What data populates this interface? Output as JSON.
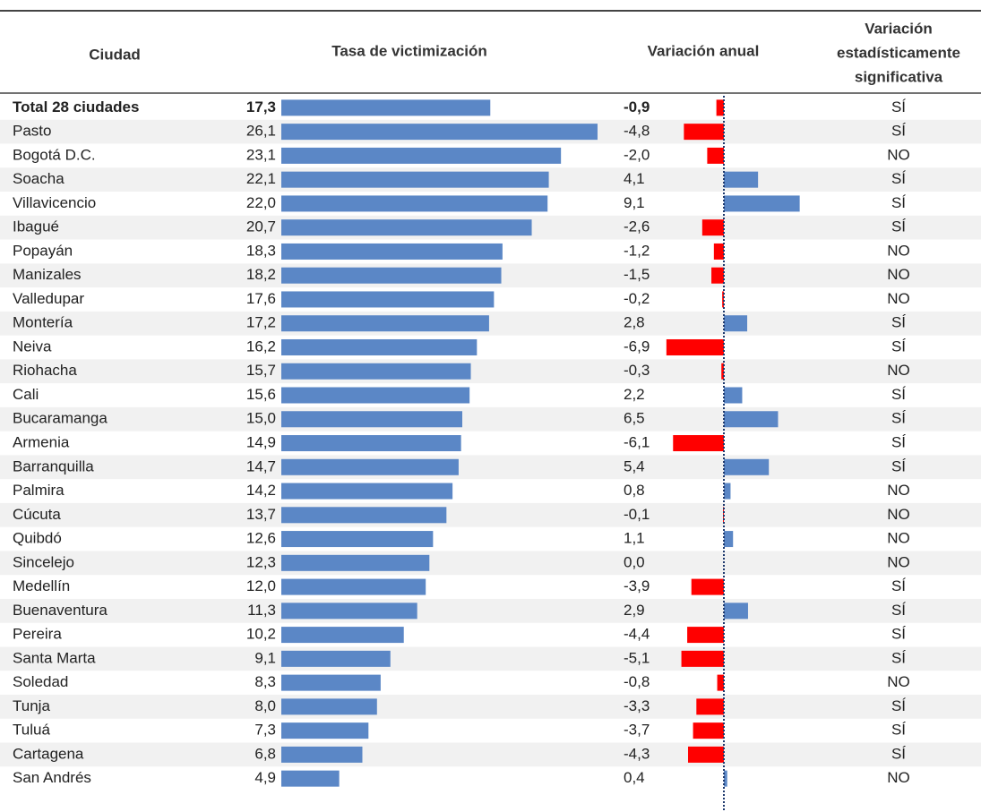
{
  "table": {
    "headers": {
      "city": "Ciudad",
      "rate": "Tasa de victimización",
      "change": "Variación anual",
      "significant": [
        "Variación",
        "estadísticamente",
        "significativa"
      ]
    },
    "bar_color": "#5b87c6",
    "negative_color": "#ff0000",
    "zero_line_color": "#1f3a6e",
    "rows": [
      {
        "city": "Total 28 ciudades",
        "rate": 17.3,
        "rate_label": "17,3",
        "change": -0.9,
        "change_label": "-0,9",
        "significant": "SÍ"
      },
      {
        "city": "Pasto",
        "rate": 26.1,
        "rate_label": "26,1",
        "change": -4.8,
        "change_label": "-4,8",
        "significant": "SÍ"
      },
      {
        "city": "Bogotá D.C.",
        "rate": 23.1,
        "rate_label": "23,1",
        "change": -2.0,
        "change_label": "-2,0",
        "significant": "NO"
      },
      {
        "city": "Soacha",
        "rate": 22.1,
        "rate_label": "22,1",
        "change": 4.1,
        "change_label": "4,1",
        "significant": "SÍ"
      },
      {
        "city": "Villavicencio",
        "rate": 22.0,
        "rate_label": "22,0",
        "change": 9.1,
        "change_label": "9,1",
        "significant": "SÍ"
      },
      {
        "city": "Ibagué",
        "rate": 20.7,
        "rate_label": "20,7",
        "change": -2.6,
        "change_label": "-2,6",
        "significant": "SÍ"
      },
      {
        "city": "Popayán",
        "rate": 18.3,
        "rate_label": "18,3",
        "change": -1.2,
        "change_label": "-1,2",
        "significant": "NO"
      },
      {
        "city": "Manizales",
        "rate": 18.2,
        "rate_label": "18,2",
        "change": -1.5,
        "change_label": "-1,5",
        "significant": "NO"
      },
      {
        "city": "Valledupar",
        "rate": 17.6,
        "rate_label": "17,6",
        "change": -0.2,
        "change_label": "-0,2",
        "significant": "NO"
      },
      {
        "city": "Montería",
        "rate": 17.2,
        "rate_label": "17,2",
        "change": 2.8,
        "change_label": "2,8",
        "significant": "SÍ"
      },
      {
        "city": "Neiva",
        "rate": 16.2,
        "rate_label": "16,2",
        "change": -6.9,
        "change_label": "-6,9",
        "significant": "SÍ"
      },
      {
        "city": "Riohacha",
        "rate": 15.7,
        "rate_label": "15,7",
        "change": -0.3,
        "change_label": "-0,3",
        "significant": "NO"
      },
      {
        "city": "Cali",
        "rate": 15.6,
        "rate_label": "15,6",
        "change": 2.2,
        "change_label": "2,2",
        "significant": "SÍ"
      },
      {
        "city": "Bucaramanga",
        "rate": 15.0,
        "rate_label": "15,0",
        "change": 6.5,
        "change_label": "6,5",
        "significant": "SÍ"
      },
      {
        "city": "Armenia",
        "rate": 14.9,
        "rate_label": "14,9",
        "change": -6.1,
        "change_label": "-6,1",
        "significant": "SÍ"
      },
      {
        "city": "Barranquilla",
        "rate": 14.7,
        "rate_label": "14,7",
        "change": 5.4,
        "change_label": "5,4",
        "significant": "SÍ"
      },
      {
        "city": "Palmira",
        "rate": 14.2,
        "rate_label": "14,2",
        "change": 0.8,
        "change_label": "0,8",
        "significant": "NO"
      },
      {
        "city": "Cúcuta",
        "rate": 13.7,
        "rate_label": "13,7",
        "change": -0.1,
        "change_label": "-0,1",
        "significant": "NO"
      },
      {
        "city": "Quibdó",
        "rate": 12.6,
        "rate_label": "12,6",
        "change": 1.1,
        "change_label": "1,1",
        "significant": "NO"
      },
      {
        "city": "Sincelejo",
        "rate": 12.3,
        "rate_label": "12,3",
        "change": 0.0,
        "change_label": "0,0",
        "significant": "NO"
      },
      {
        "city": "Medellín",
        "rate": 12.0,
        "rate_label": "12,0",
        "change": -3.9,
        "change_label": "-3,9",
        "significant": "SÍ"
      },
      {
        "city": "Buenaventura",
        "rate": 11.3,
        "rate_label": "11,3",
        "change": 2.9,
        "change_label": "2,9",
        "significant": "SÍ"
      },
      {
        "city": "Pereira",
        "rate": 10.2,
        "rate_label": "10,2",
        "change": -4.4,
        "change_label": "-4,4",
        "significant": "SÍ"
      },
      {
        "city": "Santa Marta",
        "rate": 9.1,
        "rate_label": "9,1",
        "change": -5.1,
        "change_label": "-5,1",
        "significant": "SÍ"
      },
      {
        "city": "Soledad",
        "rate": 8.3,
        "rate_label": "8,3",
        "change": -0.8,
        "change_label": "-0,8",
        "significant": "NO"
      },
      {
        "city": "Tunja",
        "rate": 8.0,
        "rate_label": "8,0",
        "change": -3.3,
        "change_label": "-3,3",
        "significant": "SÍ"
      },
      {
        "city": "Tuluá",
        "rate": 7.3,
        "rate_label": "7,3",
        "change": -3.7,
        "change_label": "-3,7",
        "significant": "SÍ"
      },
      {
        "city": "Cartagena",
        "rate": 6.8,
        "rate_label": "6,8",
        "change": -4.3,
        "change_label": "-4,3",
        "significant": "SÍ"
      },
      {
        "city": "San Andrés",
        "rate": 4.9,
        "rate_label": "4,9",
        "change": 0.4,
        "change_label": "0,4",
        "significant": "NO"
      }
    ]
  }
}
